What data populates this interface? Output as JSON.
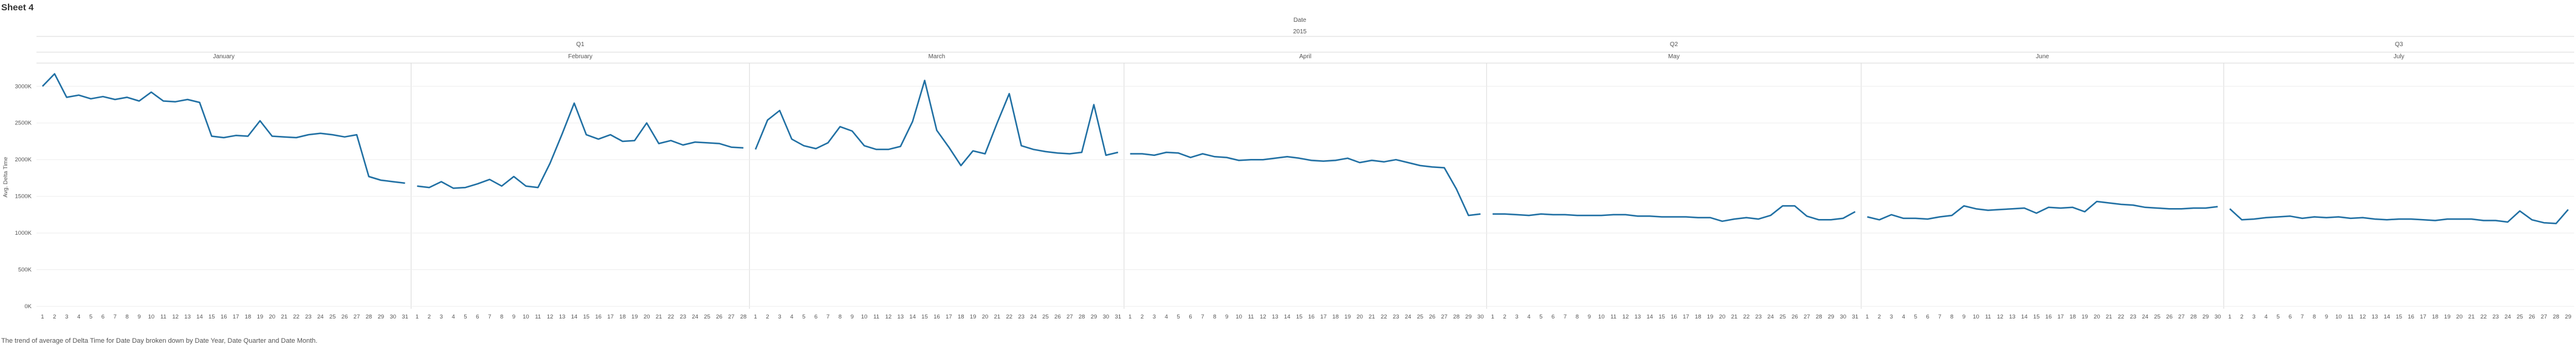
{
  "title": "Sheet 4",
  "caption": "The trend of average of Delta Time for Date Day broken down by Date Year, Date Quarter and Date Month.",
  "colors": {
    "line": "#1f6fa3",
    "grid": "#eeeeee",
    "divider": "#d9d9d9"
  },
  "chart_data": {
    "type": "line",
    "header_field": "Date",
    "year": "2015",
    "quarters": [
      {
        "label": "Q1",
        "months": [
          0,
          1,
          2
        ]
      },
      {
        "label": "Q2",
        "months": [
          3,
          4,
          5
        ]
      },
      {
        "label": "Q3",
        "months": [
          6
        ]
      }
    ],
    "ylabel": "Avg. Delta Time",
    "ylim": [
      0,
      3300000
    ],
    "yticks": [
      0,
      500000,
      1000000,
      1500000,
      2000000,
      2500000,
      3000000
    ],
    "ytick_labels": [
      "0K",
      "500K",
      "1000K",
      "1500K",
      "2000K",
      "2500K",
      "3000K"
    ],
    "xlabel": "",
    "grid": true,
    "months": [
      {
        "name": "January",
        "values": [
          3000000,
          3170000,
          2850000,
          2880000,
          2830000,
          2860000,
          2820000,
          2850000,
          2800000,
          2920000,
          2800000,
          2790000,
          2820000,
          2780000,
          2320000,
          2300000,
          2330000,
          2320000,
          2530000,
          2320000,
          2310000,
          2300000,
          2340000,
          2360000,
          2340000,
          2310000,
          2340000,
          1770000,
          1720000,
          1700000,
          1680000
        ]
      },
      {
        "name": "February",
        "values": [
          1640000,
          1620000,
          1700000,
          1610000,
          1620000,
          1670000,
          1730000,
          1640000,
          1770000,
          1640000,
          1620000,
          1950000,
          2350000,
          2770000,
          2340000,
          2280000,
          2340000,
          2250000,
          2260000,
          2500000,
          2220000,
          2260000,
          2200000,
          2240000,
          2230000,
          2220000,
          2170000,
          2160000
        ]
      },
      {
        "name": "March",
        "values": [
          2140000,
          2540000,
          2670000,
          2280000,
          2190000,
          2150000,
          2230000,
          2450000,
          2390000,
          2190000,
          2140000,
          2140000,
          2180000,
          2520000,
          3080000,
          2400000,
          2170000,
          1920000,
          2120000,
          2080000,
          2500000,
          2900000,
          2190000,
          2140000,
          2110000,
          2090000,
          2080000,
          2100000,
          2750000,
          2060000,
          2100000
        ]
      },
      {
        "name": "April",
        "values": [
          2080000,
          2080000,
          2060000,
          2100000,
          2090000,
          2030000,
          2080000,
          2040000,
          2030000,
          1990000,
          2000000,
          2000000,
          2020000,
          2040000,
          2020000,
          1990000,
          1980000,
          1990000,
          2020000,
          1960000,
          1990000,
          1970000,
          2000000,
          1960000,
          1920000,
          1900000,
          1890000,
          1600000,
          1240000,
          1260000
        ]
      },
      {
        "name": "May",
        "values": [
          1260000,
          1260000,
          1250000,
          1240000,
          1260000,
          1250000,
          1250000,
          1240000,
          1240000,
          1240000,
          1250000,
          1250000,
          1230000,
          1230000,
          1220000,
          1220000,
          1220000,
          1210000,
          1210000,
          1160000,
          1190000,
          1210000,
          1190000,
          1240000,
          1370000,
          1370000,
          1230000,
          1180000,
          1180000,
          1200000,
          1290000
        ]
      },
      {
        "name": "June",
        "values": [
          1220000,
          1180000,
          1250000,
          1200000,
          1200000,
          1190000,
          1220000,
          1240000,
          1370000,
          1330000,
          1310000,
          1320000,
          1330000,
          1340000,
          1270000,
          1350000,
          1340000,
          1350000,
          1290000,
          1430000,
          1410000,
          1390000,
          1380000,
          1350000,
          1340000,
          1330000,
          1330000,
          1340000,
          1340000,
          1360000
        ]
      },
      {
        "name": "July",
        "values": [
          1330000,
          1180000,
          1190000,
          1210000,
          1220000,
          1230000,
          1200000,
          1220000,
          1210000,
          1220000,
          1200000,
          1210000,
          1190000,
          1180000,
          1190000,
          1190000,
          1180000,
          1170000,
          1190000,
          1190000,
          1190000,
          1170000,
          1170000,
          1150000,
          1300000,
          1180000,
          1140000,
          1130000,
          1320000
        ]
      }
    ]
  }
}
